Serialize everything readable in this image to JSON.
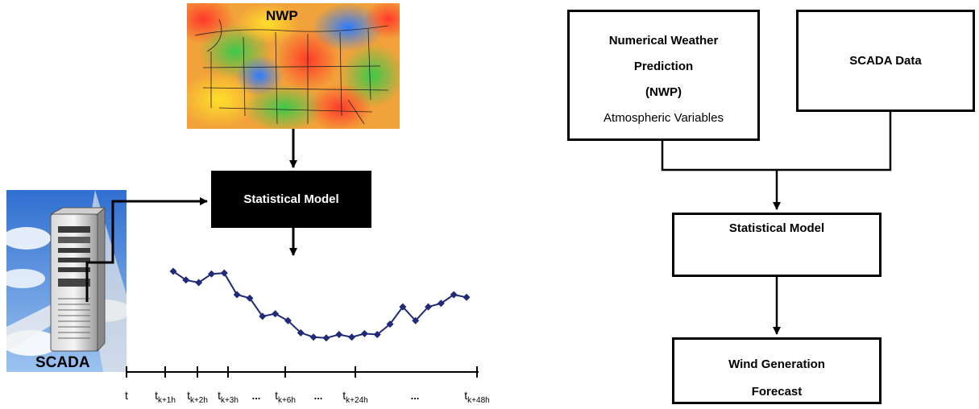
{
  "left_panel": {
    "nwp_label": "NWP",
    "statistical_model_label": "Statistical Model",
    "scada_label": "SCADA",
    "axis_ticks": [
      {
        "text": "t"
      },
      {
        "text": "t",
        "sub": "k+1h"
      },
      {
        "text": "t",
        "sub": "k+2h"
      },
      {
        "text": "t",
        "sub": "k+3h"
      },
      {
        "text": "..."
      },
      {
        "text": "t",
        "sub": "k+6h"
      },
      {
        "text": "..."
      },
      {
        "text": "t",
        "sub": "k+24h"
      },
      {
        "text": "..."
      },
      {
        "text": "t",
        "sub": "k+48h"
      }
    ]
  },
  "chart_data": {
    "type": "line",
    "title": "",
    "xlabel": "",
    "ylabel": "",
    "series": [
      {
        "values": [
          0.93,
          0.83,
          0.8,
          0.9,
          0.91,
          0.66,
          0.62,
          0.41,
          0.44,
          0.36,
          0.22,
          0.17,
          0.16,
          0.2,
          0.17,
          0.21,
          0.2,
          0.32,
          0.52,
          0.36,
          0.52,
          0.56,
          0.66,
          0.63
        ]
      }
    ],
    "color": "#1f2a78"
  },
  "right_panel": {
    "nwp_box": {
      "line1": "Numerical Weather",
      "line2": "Prediction",
      "line3": "(NWP)",
      "line4": "Atmospheric Variables"
    },
    "scada_box": "SCADA Data",
    "stat_box": "Statistical Model",
    "wind_box": {
      "line1": "Wind Generation",
      "line2": "Forecast"
    }
  }
}
